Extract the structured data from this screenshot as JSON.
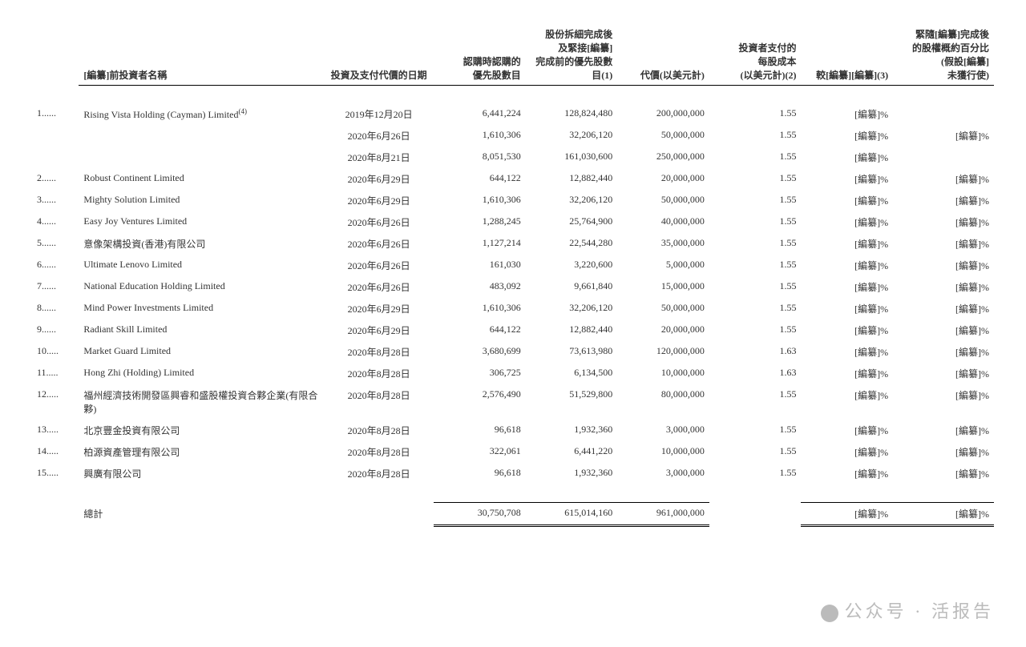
{
  "columns": {
    "name": "[編纂]前投資者名稱",
    "date": "投資及支付代價的日期",
    "shares_sub": "認購時認購的\n優先股數目",
    "shares_post": "股份拆細完成後\n及緊接[編纂]\n完成前的優先股數目(1)",
    "consideration": "代價(以美元計)",
    "cost_per_share": "投資者支付的\n每股成本\n(以美元計)(2)",
    "pct_vs": "較[編纂][編纂](3)",
    "pct_post": "緊隨[編纂]完成後\n的股權概約百分比\n(假設[編纂]\n未獲行使)"
  },
  "rows": [
    {
      "idx": "1......",
      "name": "Rising Vista Holding (Cayman) Limited",
      "name_note": "(4)",
      "lines": [
        {
          "date": "2019年12月20日",
          "c1": "6,441,224",
          "c2": "128,824,480",
          "c3": "200,000,000",
          "c4": "1.55",
          "c5": "[編纂]%",
          "c6": ""
        },
        {
          "date": "2020年6月26日",
          "c1": "1,610,306",
          "c2": "32,206,120",
          "c3": "50,000,000",
          "c4": "1.55",
          "c5": "[編纂]%",
          "c6": "[編纂]%"
        },
        {
          "date": "2020年8月21日",
          "c1": "8,051,530",
          "c2": "161,030,600",
          "c3": "250,000,000",
          "c4": "1.55",
          "c5": "[編纂]%",
          "c6": ""
        }
      ]
    },
    {
      "idx": "2......",
      "name": "Robust Continent Limited",
      "lines": [
        {
          "date": "2020年6月29日",
          "c1": "644,122",
          "c2": "12,882,440",
          "c3": "20,000,000",
          "c4": "1.55",
          "c5": "[編纂]%",
          "c6": "[編纂]%"
        }
      ]
    },
    {
      "idx": "3......",
      "name": "Mighty Solution Limited",
      "lines": [
        {
          "date": "2020年6月29日",
          "c1": "1,610,306",
          "c2": "32,206,120",
          "c3": "50,000,000",
          "c4": "1.55",
          "c5": "[編纂]%",
          "c6": "[編纂]%"
        }
      ]
    },
    {
      "idx": "4......",
      "name": "Easy Joy Ventures Limited",
      "lines": [
        {
          "date": "2020年6月26日",
          "c1": "1,288,245",
          "c2": "25,764,900",
          "c3": "40,000,000",
          "c4": "1.55",
          "c5": "[編纂]%",
          "c6": "[編纂]%"
        }
      ]
    },
    {
      "idx": "5......",
      "name": "意像架構投資(香港)有限公司",
      "lines": [
        {
          "date": "2020年6月26日",
          "c1": "1,127,214",
          "c2": "22,544,280",
          "c3": "35,000,000",
          "c4": "1.55",
          "c5": "[編纂]%",
          "c6": "[編纂]%"
        }
      ]
    },
    {
      "idx": "6......",
      "name": "Ultimate Lenovo Limited",
      "lines": [
        {
          "date": "2020年6月26日",
          "c1": "161,030",
          "c2": "3,220,600",
          "c3": "5,000,000",
          "c4": "1.55",
          "c5": "[編纂]%",
          "c6": "[編纂]%"
        }
      ]
    },
    {
      "idx": "7......",
      "name": "National Education Holding Limited",
      "lines": [
        {
          "date": "2020年6月26日",
          "c1": "483,092",
          "c2": "9,661,840",
          "c3": "15,000,000",
          "c4": "1.55",
          "c5": "[編纂]%",
          "c6": "[編纂]%"
        }
      ]
    },
    {
      "idx": "8......",
      "name": "Mind Power Investments Limited",
      "lines": [
        {
          "date": "2020年6月29日",
          "c1": "1,610,306",
          "c2": "32,206,120",
          "c3": "50,000,000",
          "c4": "1.55",
          "c5": "[編纂]%",
          "c6": "[編纂]%"
        }
      ]
    },
    {
      "idx": "9......",
      "name": "Radiant Skill Limited",
      "lines": [
        {
          "date": "2020年6月29日",
          "c1": "644,122",
          "c2": "12,882,440",
          "c3": "20,000,000",
          "c4": "1.55",
          "c5": "[編纂]%",
          "c6": "[編纂]%"
        }
      ]
    },
    {
      "idx": "10.....",
      "name": "Market Guard Limited",
      "lines": [
        {
          "date": "2020年8月28日",
          "c1": "3,680,699",
          "c2": "73,613,980",
          "c3": "120,000,000",
          "c4": "1.63",
          "c5": "[編纂]%",
          "c6": "[編纂]%"
        }
      ]
    },
    {
      "idx": "11.....",
      "name": "Hong Zhi (Holding) Limited",
      "lines": [
        {
          "date": "2020年8月28日",
          "c1": "306,725",
          "c2": "6,134,500",
          "c3": "10,000,000",
          "c4": "1.63",
          "c5": "[編纂]%",
          "c6": "[編纂]%"
        }
      ]
    },
    {
      "idx": "12.....",
      "name": "福州經濟技術開發區興睿和盛股權投資合夥企業(有限合夥)",
      "lines": [
        {
          "date": "2020年8月28日",
          "c1": "2,576,490",
          "c2": "51,529,800",
          "c3": "80,000,000",
          "c4": "1.55",
          "c5": "[編纂]%",
          "c6": "[編纂]%"
        }
      ]
    },
    {
      "idx": "13.....",
      "name": "北京豐金投資有限公司",
      "lines": [
        {
          "date": "2020年8月28日",
          "c1": "96,618",
          "c2": "1,932,360",
          "c3": "3,000,000",
          "c4": "1.55",
          "c5": "[編纂]%",
          "c6": "[編纂]%"
        }
      ]
    },
    {
      "idx": "14.....",
      "name": "柏源資產管理有限公司",
      "lines": [
        {
          "date": "2020年8月28日",
          "c1": "322,061",
          "c2": "6,441,220",
          "c3": "10,000,000",
          "c4": "1.55",
          "c5": "[編纂]%",
          "c6": "[編纂]%"
        }
      ]
    },
    {
      "idx": "15.....",
      "name": "興廣有限公司",
      "lines": [
        {
          "date": "2020年8月28日",
          "c1": "96,618",
          "c2": "1,932,360",
          "c3": "3,000,000",
          "c4": "1.55",
          "c5": "[編纂]%",
          "c6": "[編纂]%"
        }
      ]
    }
  ],
  "total": {
    "label": "總計",
    "c1": "30,750,708",
    "c2": "615,014,160",
    "c3": "961,000,000",
    "c5": "[編纂]%",
    "c6": "[編纂]%"
  },
  "watermark": "公众号 · 活报告"
}
